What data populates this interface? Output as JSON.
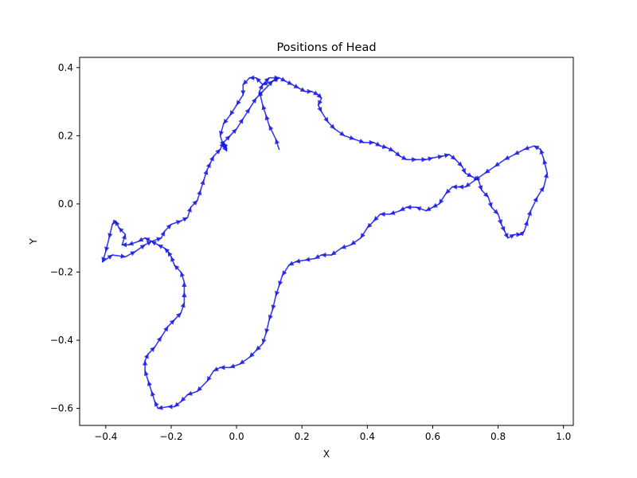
{
  "chart_data": {
    "type": "line",
    "title": "Positions of Head",
    "xlabel": "X",
    "ylabel": "Y",
    "xlim": [
      -0.48,
      1.03
    ],
    "ylim": [
      -0.65,
      0.43
    ],
    "xticks": [
      -0.4,
      -0.2,
      0.0,
      0.2,
      0.4,
      0.6,
      0.8,
      1.0
    ],
    "xtick_labels": [
      "−0.4",
      "−0.2",
      "0.0",
      "0.2",
      "0.4",
      "0.6",
      "0.8",
      "1.0"
    ],
    "yticks": [
      -0.6,
      -0.4,
      -0.2,
      0.0,
      0.2,
      0.4
    ],
    "ytick_labels": [
      "−0.6",
      "−0.4",
      "−0.2",
      "0.0",
      "0.2",
      "0.4"
    ],
    "grid": false,
    "series": [
      {
        "color": "#1a1ae6",
        "markers": "arrowheads",
        "points": [
          [
            0.13,
            0.16
          ],
          [
            0.12,
            0.19
          ],
          [
            0.1,
            0.23
          ],
          [
            0.09,
            0.26
          ],
          [
            0.08,
            0.29
          ],
          [
            0.07,
            0.33
          ],
          [
            0.08,
            0.35
          ],
          [
            0.1,
            0.37
          ],
          [
            0.13,
            0.37
          ],
          [
            0.15,
            0.36
          ],
          [
            0.17,
            0.35
          ],
          [
            0.19,
            0.34
          ],
          [
            0.21,
            0.33
          ],
          [
            0.23,
            0.33
          ],
          [
            0.25,
            0.32
          ],
          [
            0.26,
            0.31
          ],
          [
            0.25,
            0.29
          ],
          [
            0.26,
            0.27
          ],
          [
            0.28,
            0.24
          ],
          [
            0.3,
            0.22
          ],
          [
            0.33,
            0.2
          ],
          [
            0.36,
            0.19
          ],
          [
            0.39,
            0.18
          ],
          [
            0.42,
            0.18
          ],
          [
            0.44,
            0.17
          ],
          [
            0.46,
            0.165
          ],
          [
            0.48,
            0.155
          ],
          [
            0.5,
            0.14
          ],
          [
            0.52,
            0.13
          ],
          [
            0.55,
            0.13
          ],
          [
            0.58,
            0.13
          ],
          [
            0.6,
            0.135
          ],
          [
            0.63,
            0.14
          ],
          [
            0.65,
            0.145
          ],
          [
            0.67,
            0.13
          ],
          [
            0.69,
            0.11
          ],
          [
            0.7,
            0.09
          ],
          [
            0.72,
            0.08
          ],
          [
            0.74,
            0.07
          ],
          [
            0.75,
            0.04
          ],
          [
            0.77,
            0.02
          ],
          [
            0.78,
            -0.01
          ],
          [
            0.8,
            -0.03
          ],
          [
            0.81,
            -0.06
          ],
          [
            0.82,
            -0.08
          ],
          [
            0.83,
            -0.1
          ],
          [
            0.85,
            -0.09
          ],
          [
            0.87,
            -0.09
          ],
          [
            0.88,
            -0.08
          ],
          [
            0.89,
            -0.05
          ],
          [
            0.9,
            -0.02
          ],
          [
            0.92,
            0.02
          ],
          [
            0.94,
            0.05
          ],
          [
            0.95,
            0.09
          ],
          [
            0.94,
            0.13
          ],
          [
            0.93,
            0.16
          ],
          [
            0.91,
            0.17
          ],
          [
            0.88,
            0.16
          ],
          [
            0.85,
            0.145
          ],
          [
            0.82,
            0.13
          ],
          [
            0.79,
            0.11
          ],
          [
            0.76,
            0.09
          ],
          [
            0.73,
            0.07
          ],
          [
            0.7,
            0.05
          ],
          [
            0.68,
            0.05
          ],
          [
            0.66,
            0.05
          ],
          [
            0.64,
            0.03
          ],
          [
            0.62,
            0.0
          ],
          [
            0.6,
            -0.01
          ],
          [
            0.58,
            -0.02
          ],
          [
            0.55,
            -0.01
          ],
          [
            0.52,
            -0.01
          ],
          [
            0.5,
            -0.02
          ],
          [
            0.47,
            -0.03
          ],
          [
            0.44,
            -0.03
          ],
          [
            0.42,
            -0.05
          ],
          [
            0.4,
            -0.07
          ],
          [
            0.38,
            -0.1
          ],
          [
            0.35,
            -0.12
          ],
          [
            0.32,
            -0.13
          ],
          [
            0.29,
            -0.15
          ],
          [
            0.26,
            -0.15
          ],
          [
            0.24,
            -0.16
          ],
          [
            0.21,
            -0.165
          ],
          [
            0.18,
            -0.17
          ],
          [
            0.16,
            -0.18
          ],
          [
            0.14,
            -0.21
          ],
          [
            0.13,
            -0.24
          ],
          [
            0.12,
            -0.27
          ],
          [
            0.11,
            -0.31
          ],
          [
            0.1,
            -0.34
          ],
          [
            0.09,
            -0.38
          ],
          [
            0.08,
            -0.41
          ],
          [
            0.06,
            -0.43
          ],
          [
            0.04,
            -0.45
          ],
          [
            0.01,
            -0.47
          ],
          [
            -0.02,
            -0.48
          ],
          [
            -0.05,
            -0.48
          ],
          [
            -0.07,
            -0.49
          ],
          [
            -0.09,
            -0.52
          ],
          [
            -0.12,
            -0.55
          ],
          [
            -0.15,
            -0.56
          ],
          [
            -0.17,
            -0.58
          ],
          [
            -0.19,
            -0.595
          ],
          [
            -0.21,
            -0.595
          ],
          [
            -0.24,
            -0.6
          ],
          [
            -0.25,
            -0.58
          ],
          [
            -0.26,
            -0.55
          ],
          [
            -0.27,
            -0.52
          ],
          [
            -0.28,
            -0.49
          ],
          [
            -0.28,
            -0.46
          ],
          [
            -0.27,
            -0.44
          ],
          [
            -0.25,
            -0.42
          ],
          [
            -0.23,
            -0.39
          ],
          [
            -0.21,
            -0.36
          ],
          [
            -0.19,
            -0.34
          ],
          [
            -0.17,
            -0.32
          ],
          [
            -0.16,
            -0.29
          ],
          [
            -0.16,
            -0.26
          ],
          [
            -0.16,
            -0.23
          ],
          [
            -0.17,
            -0.2
          ],
          [
            -0.19,
            -0.18
          ],
          [
            -0.2,
            -0.155
          ],
          [
            -0.21,
            -0.14
          ],
          [
            -0.22,
            -0.13
          ],
          [
            -0.24,
            -0.12
          ],
          [
            -0.26,
            -0.11
          ],
          [
            -0.28,
            -0.1
          ],
          [
            -0.3,
            -0.11
          ],
          [
            -0.33,
            -0.12
          ],
          [
            -0.35,
            -0.12
          ],
          [
            -0.34,
            -0.09
          ],
          [
            -0.36,
            -0.07
          ],
          [
            -0.37,
            -0.05
          ],
          [
            -0.38,
            -0.06
          ],
          [
            -0.39,
            -0.1
          ],
          [
            -0.4,
            -0.14
          ],
          [
            -0.41,
            -0.17
          ],
          [
            -0.38,
            -0.15
          ],
          [
            -0.34,
            -0.155
          ],
          [
            -0.31,
            -0.14
          ],
          [
            -0.28,
            -0.12
          ],
          [
            -0.26,
            -0.11
          ],
          [
            -0.23,
            -0.1
          ],
          [
            -0.22,
            -0.08
          ],
          [
            -0.2,
            -0.06
          ],
          [
            -0.17,
            -0.05
          ],
          [
            -0.15,
            -0.04
          ],
          [
            -0.14,
            -0.01
          ],
          [
            -0.12,
            0.01
          ],
          [
            -0.11,
            0.04
          ],
          [
            -0.1,
            0.07
          ],
          [
            -0.09,
            0.1
          ],
          [
            -0.08,
            0.12
          ],
          [
            -0.07,
            0.14
          ],
          [
            -0.05,
            0.16
          ],
          [
            -0.04,
            0.18
          ],
          [
            -0.03,
            0.16
          ],
          [
            -0.04,
            0.18
          ],
          [
            -0.02,
            0.2
          ],
          [
            0.0,
            0.22
          ],
          [
            0.02,
            0.25
          ],
          [
            0.04,
            0.28
          ],
          [
            0.06,
            0.31
          ],
          [
            0.08,
            0.33
          ],
          [
            0.11,
            0.36
          ],
          [
            0.13,
            0.37
          ],
          [
            0.11,
            0.36
          ],
          [
            0.08,
            0.35
          ],
          [
            0.06,
            0.37
          ],
          [
            0.04,
            0.37
          ],
          [
            0.02,
            0.35
          ],
          [
            0.02,
            0.32
          ],
          [
            0.0,
            0.29
          ],
          [
            -0.02,
            0.26
          ],
          [
            -0.04,
            0.235
          ],
          [
            -0.05,
            0.2
          ],
          [
            -0.04,
            0.17
          ],
          [
            -0.03,
            0.155
          ]
        ]
      }
    ]
  }
}
